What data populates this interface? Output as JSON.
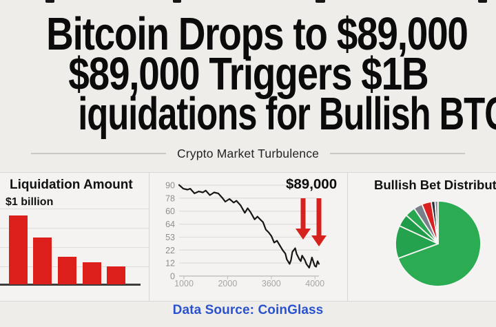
{
  "theme": {
    "page_bg": "#EFEDEA",
    "panel_bg": "#F4F3F1",
    "divider": "#D8D6D3",
    "headline_color": "#0B0B0B",
    "red": "#DC1F1A",
    "green": "#2BAB52",
    "blue": "#2B52CE"
  },
  "headline": {
    "line1": "Bitcoin Drops to $89,000",
    "line2": "$89,000 Triggers $1B",
    "line3": "iquidations for Bullish BTC Bet"
  },
  "subtitle": "Crypto Market Turbulence",
  "footer": {
    "source": "Data Source: CoinGlass"
  },
  "chart_data": [
    {
      "type": "bar",
      "title": "Liquidation Amount",
      "annotation": "$1 billion",
      "categories": [
        "",
        "",
        "",
        "",
        ""
      ],
      "values": [
        100,
        68,
        40,
        32,
        26
      ],
      "unit": "relative height, axis unlabeled",
      "bar_color": "#DC1F1A",
      "grid": true,
      "xlabel": "",
      "ylabel": ""
    },
    {
      "type": "line",
      "annotation": "$89,000",
      "y_ticks": [
        "90",
        "78",
        "60",
        "64",
        "53",
        "22",
        "12",
        "0"
      ],
      "x_ticks": [
        "1000",
        "2000",
        "3600",
        "4000"
      ],
      "line_color": "#161616",
      "arrow_color": "#D6221C",
      "arrows": 2,
      "grid": true,
      "points_norm": [
        [
          0,
          0.02
        ],
        [
          0.03,
          0.06
        ],
        [
          0.06,
          0.07
        ],
        [
          0.08,
          0.06
        ],
        [
          0.11,
          0.11
        ],
        [
          0.14,
          0.09
        ],
        [
          0.17,
          0.1
        ],
        [
          0.19,
          0.08
        ],
        [
          0.22,
          0.13
        ],
        [
          0.25,
          0.1
        ],
        [
          0.28,
          0.11
        ],
        [
          0.31,
          0.16
        ],
        [
          0.33,
          0.2
        ],
        [
          0.36,
          0.17
        ],
        [
          0.39,
          0.21
        ],
        [
          0.41,
          0.19
        ],
        [
          0.44,
          0.24
        ],
        [
          0.47,
          0.32
        ],
        [
          0.49,
          0.27
        ],
        [
          0.51,
          0.31
        ],
        [
          0.54,
          0.39
        ],
        [
          0.56,
          0.36
        ],
        [
          0.58,
          0.39
        ],
        [
          0.6,
          0.42
        ],
        [
          0.62,
          0.5
        ],
        [
          0.64,
          0.53
        ],
        [
          0.66,
          0.57
        ],
        [
          0.68,
          0.64
        ],
        [
          0.7,
          0.62
        ],
        [
          0.72,
          0.67
        ],
        [
          0.74,
          0.72
        ],
        [
          0.76,
          0.76
        ],
        [
          0.77,
          0.82
        ],
        [
          0.79,
          0.87
        ],
        [
          0.8,
          0.83
        ],
        [
          0.81,
          0.74
        ],
        [
          0.83,
          0.7
        ],
        [
          0.84,
          0.76
        ],
        [
          0.86,
          0.82
        ],
        [
          0.87,
          0.84
        ],
        [
          0.88,
          0.78
        ],
        [
          0.9,
          0.83
        ],
        [
          0.91,
          0.87
        ],
        [
          0.93,
          0.91
        ],
        [
          0.94,
          0.86
        ],
        [
          0.95,
          0.8
        ],
        [
          0.97,
          0.89
        ],
        [
          0.98,
          0.9
        ],
        [
          0.99,
          0.84
        ],
        [
          1,
          0.87
        ]
      ]
    },
    {
      "type": "pie",
      "title": "Bullish Bet Distribution",
      "slices": [
        {
          "color": "#2BAB52",
          "value": 69.4
        },
        {
          "color": "#25A24E",
          "value": 12.5
        },
        {
          "color": "#1F9C4A",
          "value": 4.7
        },
        {
          "color": "#29A750",
          "value": 3.9
        },
        {
          "color": "#79808A",
          "value": 3.3
        },
        {
          "color": "#D92121",
          "value": 3.6
        },
        {
          "color": "#262A33",
          "value": 1.4
        },
        {
          "color": "#8A8F97",
          "value": 1.1
        }
      ],
      "legend": "none"
    }
  ]
}
